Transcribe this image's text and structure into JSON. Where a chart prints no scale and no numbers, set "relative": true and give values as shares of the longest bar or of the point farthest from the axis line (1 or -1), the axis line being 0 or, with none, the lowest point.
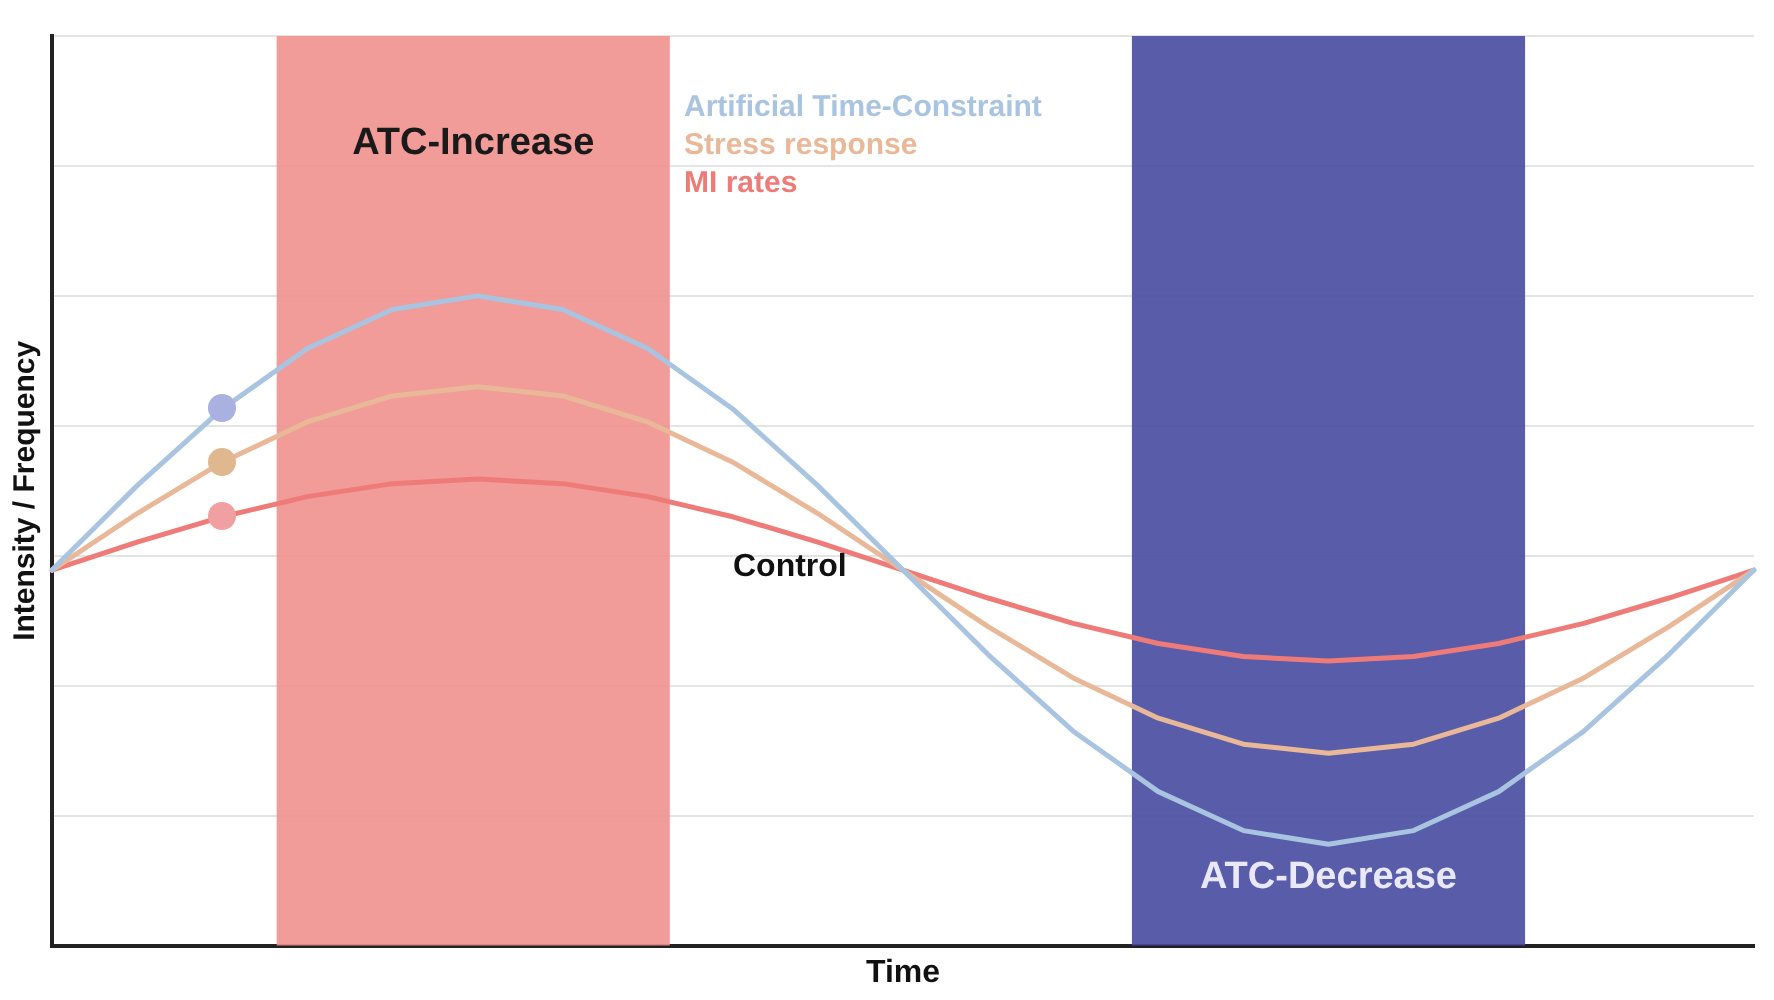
{
  "chart_data": {
    "type": "line",
    "xlabel": "Time",
    "ylabel": "Intensity / Frequency",
    "relative": true,
    "grid": "y",
    "marker": "none",
    "categories": [
      null,
      null,
      null,
      null,
      null,
      null,
      null,
      null,
      null,
      null,
      null,
      null,
      null,
      null,
      null,
      null,
      null,
      null,
      null,
      null,
      null
    ],
    "series": [
      {
        "name": "Artificial Time-Constraint",
        "color": "#a9c4e0",
        "values": [
          0.578,
          0.708,
          0.826,
          0.919,
          0.979,
          1.0,
          0.979,
          0.919,
          0.826,
          0.708,
          0.578,
          0.448,
          0.33,
          0.237,
          0.177,
          0.156,
          0.177,
          0.237,
          0.33,
          0.448,
          0.578
        ]
      },
      {
        "name": "Stress response",
        "color": "#e8b898",
        "values": [
          0.578,
          0.665,
          0.744,
          0.806,
          0.846,
          0.86,
          0.846,
          0.806,
          0.744,
          0.665,
          0.578,
          0.491,
          0.412,
          0.35,
          0.31,
          0.296,
          0.31,
          0.35,
          0.412,
          0.491,
          0.578
        ]
      },
      {
        "name": "MI rates",
        "color": "#ee7b78",
        "values": [
          0.578,
          0.621,
          0.66,
          0.691,
          0.711,
          0.718,
          0.711,
          0.691,
          0.66,
          0.621,
          0.578,
          0.535,
          0.496,
          0.465,
          0.445,
          0.438,
          0.445,
          0.465,
          0.496,
          0.535,
          0.578
        ]
      }
    ],
    "annotations": [
      "ATC-Increase",
      "ATC-Decrease",
      "Control"
    ]
  }
}
